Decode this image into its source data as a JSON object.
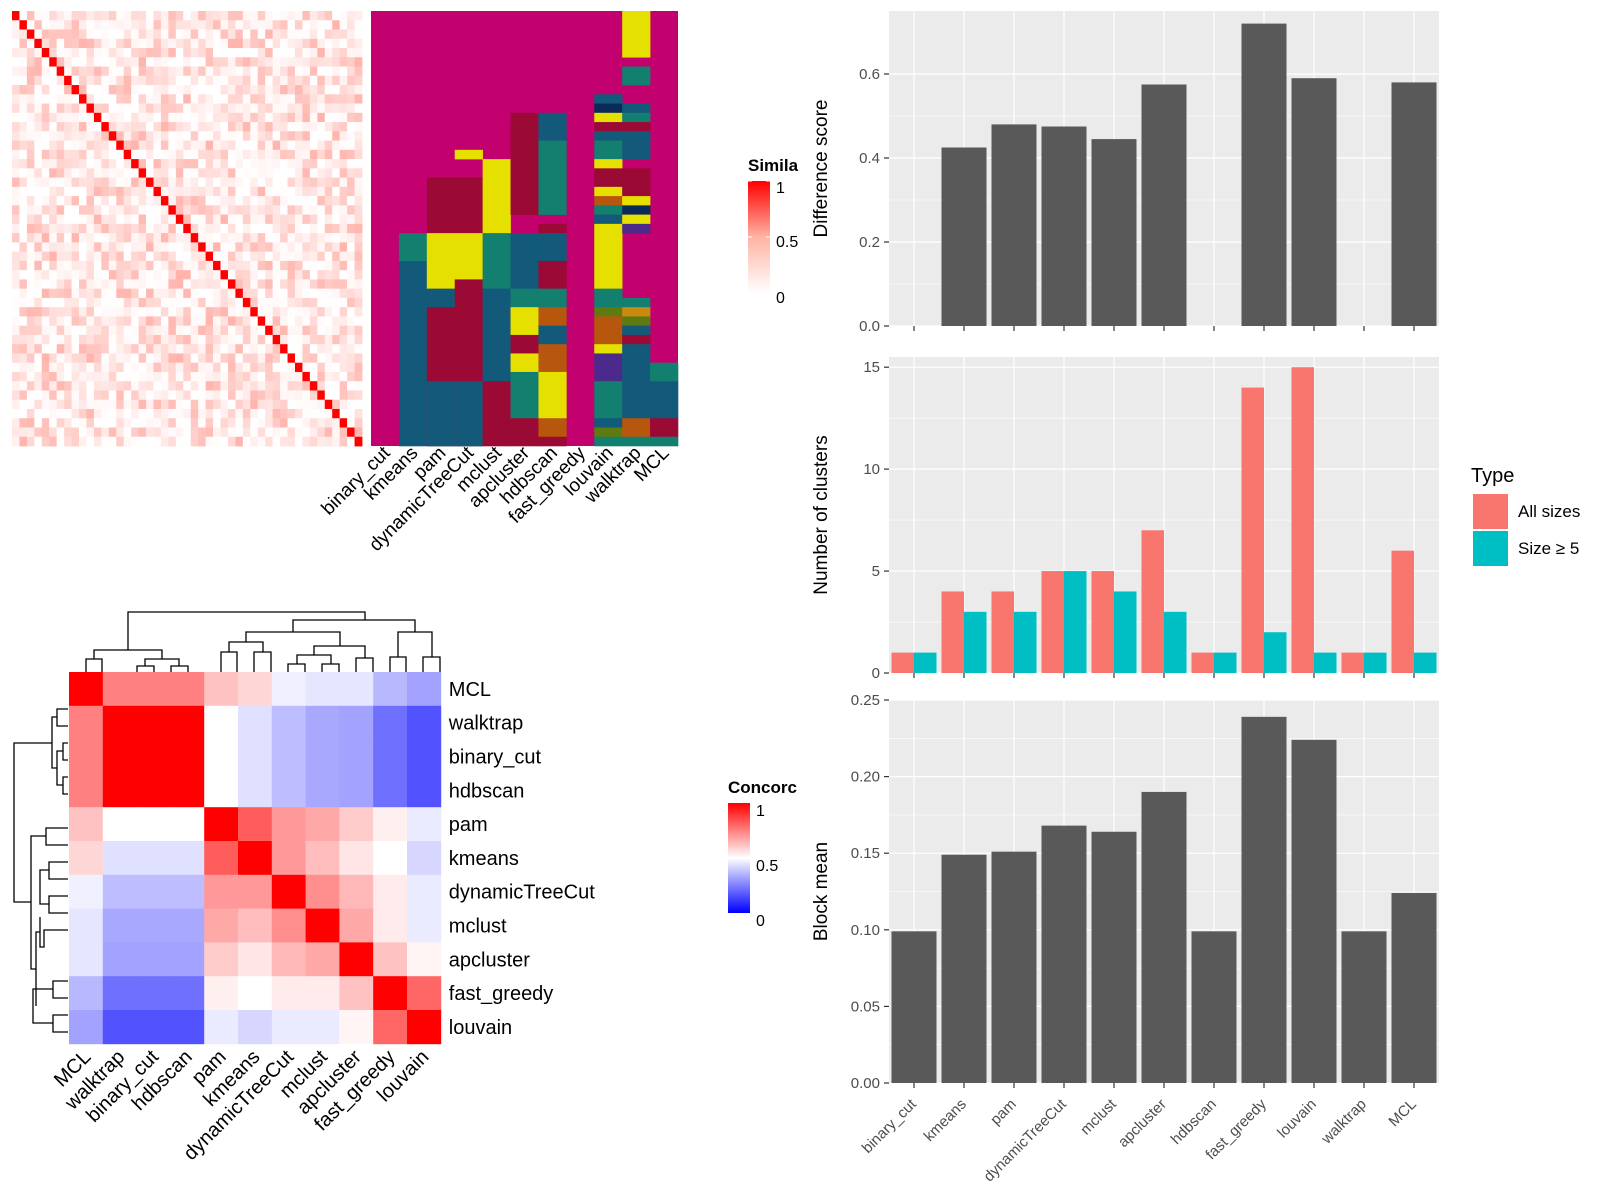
{
  "colors": {
    "panel_bg": "#EBEBEB",
    "grid": "#FFFFFF",
    "bar": "#595959",
    "all_sizes": "#F8766D",
    "size5": "#00BFC4",
    "heat_high": "#FF0000",
    "heat_mid": "#FFFFFF",
    "heat_low": "#0000FF",
    "cluster_magenta": "#C2006E",
    "cluster_yellow": "#E6E000",
    "cluster_teal": "#137F6F",
    "cluster_crimson": "#9B0A34",
    "cluster_blue": "#135A7A"
  },
  "methods": [
    "binary_cut",
    "kmeans",
    "pam",
    "dynamicTreeCut",
    "mclust",
    "apcluster",
    "hdbscan",
    "fast_greedy",
    "louvain",
    "walktrap",
    "MCL"
  ],
  "similarity_legend": {
    "title": "Simila",
    "ticks": [
      "1",
      "0.5",
      "0"
    ]
  },
  "concordance_legend": {
    "title": "Concorc",
    "ticks": [
      "1",
      "0.5",
      "0"
    ]
  },
  "concordance_order": [
    "MCL",
    "walktrap",
    "binary_cut",
    "hdbscan",
    "pam",
    "kmeans",
    "dynamicTreeCut",
    "mclust",
    "apcluster",
    "fast_greedy",
    "louvain"
  ],
  "concordance_matrix": [
    [
      1.0,
      0.75,
      0.75,
      0.75,
      0.62,
      0.58,
      0.47,
      0.45,
      0.45,
      0.36,
      0.32
    ],
    [
      0.75,
      1.0,
      1.0,
      1.0,
      0.5,
      0.44,
      0.37,
      0.33,
      0.32,
      0.22,
      0.16
    ],
    [
      0.75,
      1.0,
      1.0,
      1.0,
      0.5,
      0.44,
      0.37,
      0.33,
      0.32,
      0.22,
      0.16
    ],
    [
      0.75,
      1.0,
      1.0,
      1.0,
      0.5,
      0.44,
      0.37,
      0.33,
      0.32,
      0.22,
      0.16
    ],
    [
      0.62,
      0.5,
      0.5,
      0.5,
      1.0,
      0.82,
      0.7,
      0.67,
      0.6,
      0.53,
      0.46
    ],
    [
      0.58,
      0.44,
      0.44,
      0.44,
      0.82,
      1.0,
      0.7,
      0.63,
      0.55,
      0.5,
      0.42
    ],
    [
      0.47,
      0.37,
      0.37,
      0.37,
      0.7,
      0.7,
      1.0,
      0.72,
      0.64,
      0.54,
      0.46
    ],
    [
      0.45,
      0.33,
      0.33,
      0.33,
      0.67,
      0.63,
      0.72,
      1.0,
      0.67,
      0.54,
      0.46
    ],
    [
      0.45,
      0.32,
      0.32,
      0.32,
      0.6,
      0.55,
      0.64,
      0.67,
      1.0,
      0.62,
      0.52
    ],
    [
      0.36,
      0.22,
      0.22,
      0.22,
      0.53,
      0.5,
      0.54,
      0.54,
      0.62,
      1.0,
      0.8
    ],
    [
      0.32,
      0.16,
      0.16,
      0.16,
      0.46,
      0.42,
      0.46,
      0.46,
      0.52,
      0.8,
      1.0
    ]
  ],
  "chart_data": [
    {
      "type": "bar",
      "categories": [
        "binary_cut",
        "kmeans",
        "pam",
        "dynamicTreeCut",
        "mclust",
        "apcluster",
        "hdbscan",
        "fast_greedy",
        "louvain",
        "walktrap",
        "MCL"
      ],
      "values": [
        0,
        0.425,
        0.48,
        0.475,
        0.445,
        0.575,
        0,
        0.72,
        0.59,
        0,
        0.58
      ],
      "xlabel": "",
      "ylabel": "Difference score",
      "ylim": [
        0,
        0.75
      ],
      "yticks": [
        "0.0",
        "0.2",
        "0.4",
        "0.6"
      ],
      "grid": true
    },
    {
      "type": "bar",
      "categories": [
        "binary_cut",
        "kmeans",
        "pam",
        "dynamicTreeCut",
        "mclust",
        "apcluster",
        "hdbscan",
        "fast_greedy",
        "louvain",
        "walktrap",
        "MCL"
      ],
      "series": [
        {
          "name": "All sizes",
          "values": [
            1,
            4,
            4,
            5,
            5,
            7,
            1,
            14,
            15,
            1,
            6
          ]
        },
        {
          "name": "Size ≥ 5",
          "values": [
            1,
            3,
            3,
            5,
            4,
            3,
            1,
            2,
            1,
            1,
            1
          ]
        }
      ],
      "xlabel": "",
      "ylabel": "Number of clusters",
      "ylim": [
        0,
        15.5
      ],
      "yticks": [
        "0",
        "5",
        "10",
        "15"
      ],
      "legend": {
        "title": "Type",
        "position": "right"
      },
      "grid": true
    },
    {
      "type": "bar",
      "categories": [
        "binary_cut",
        "kmeans",
        "pam",
        "dynamicTreeCut",
        "mclust",
        "apcluster",
        "hdbscan",
        "fast_greedy",
        "louvain",
        "walktrap",
        "MCL"
      ],
      "values": [
        0.099,
        0.149,
        0.151,
        0.168,
        0.164,
        0.19,
        0.099,
        0.239,
        0.224,
        0.099,
        0.124
      ],
      "xlabel": "",
      "ylabel": "Block mean",
      "ylim": [
        0,
        0.25
      ],
      "yticks": [
        "0.00",
        "0.05",
        "0.10",
        "0.15",
        "0.20",
        "0.25"
      ],
      "grid": true
    }
  ]
}
